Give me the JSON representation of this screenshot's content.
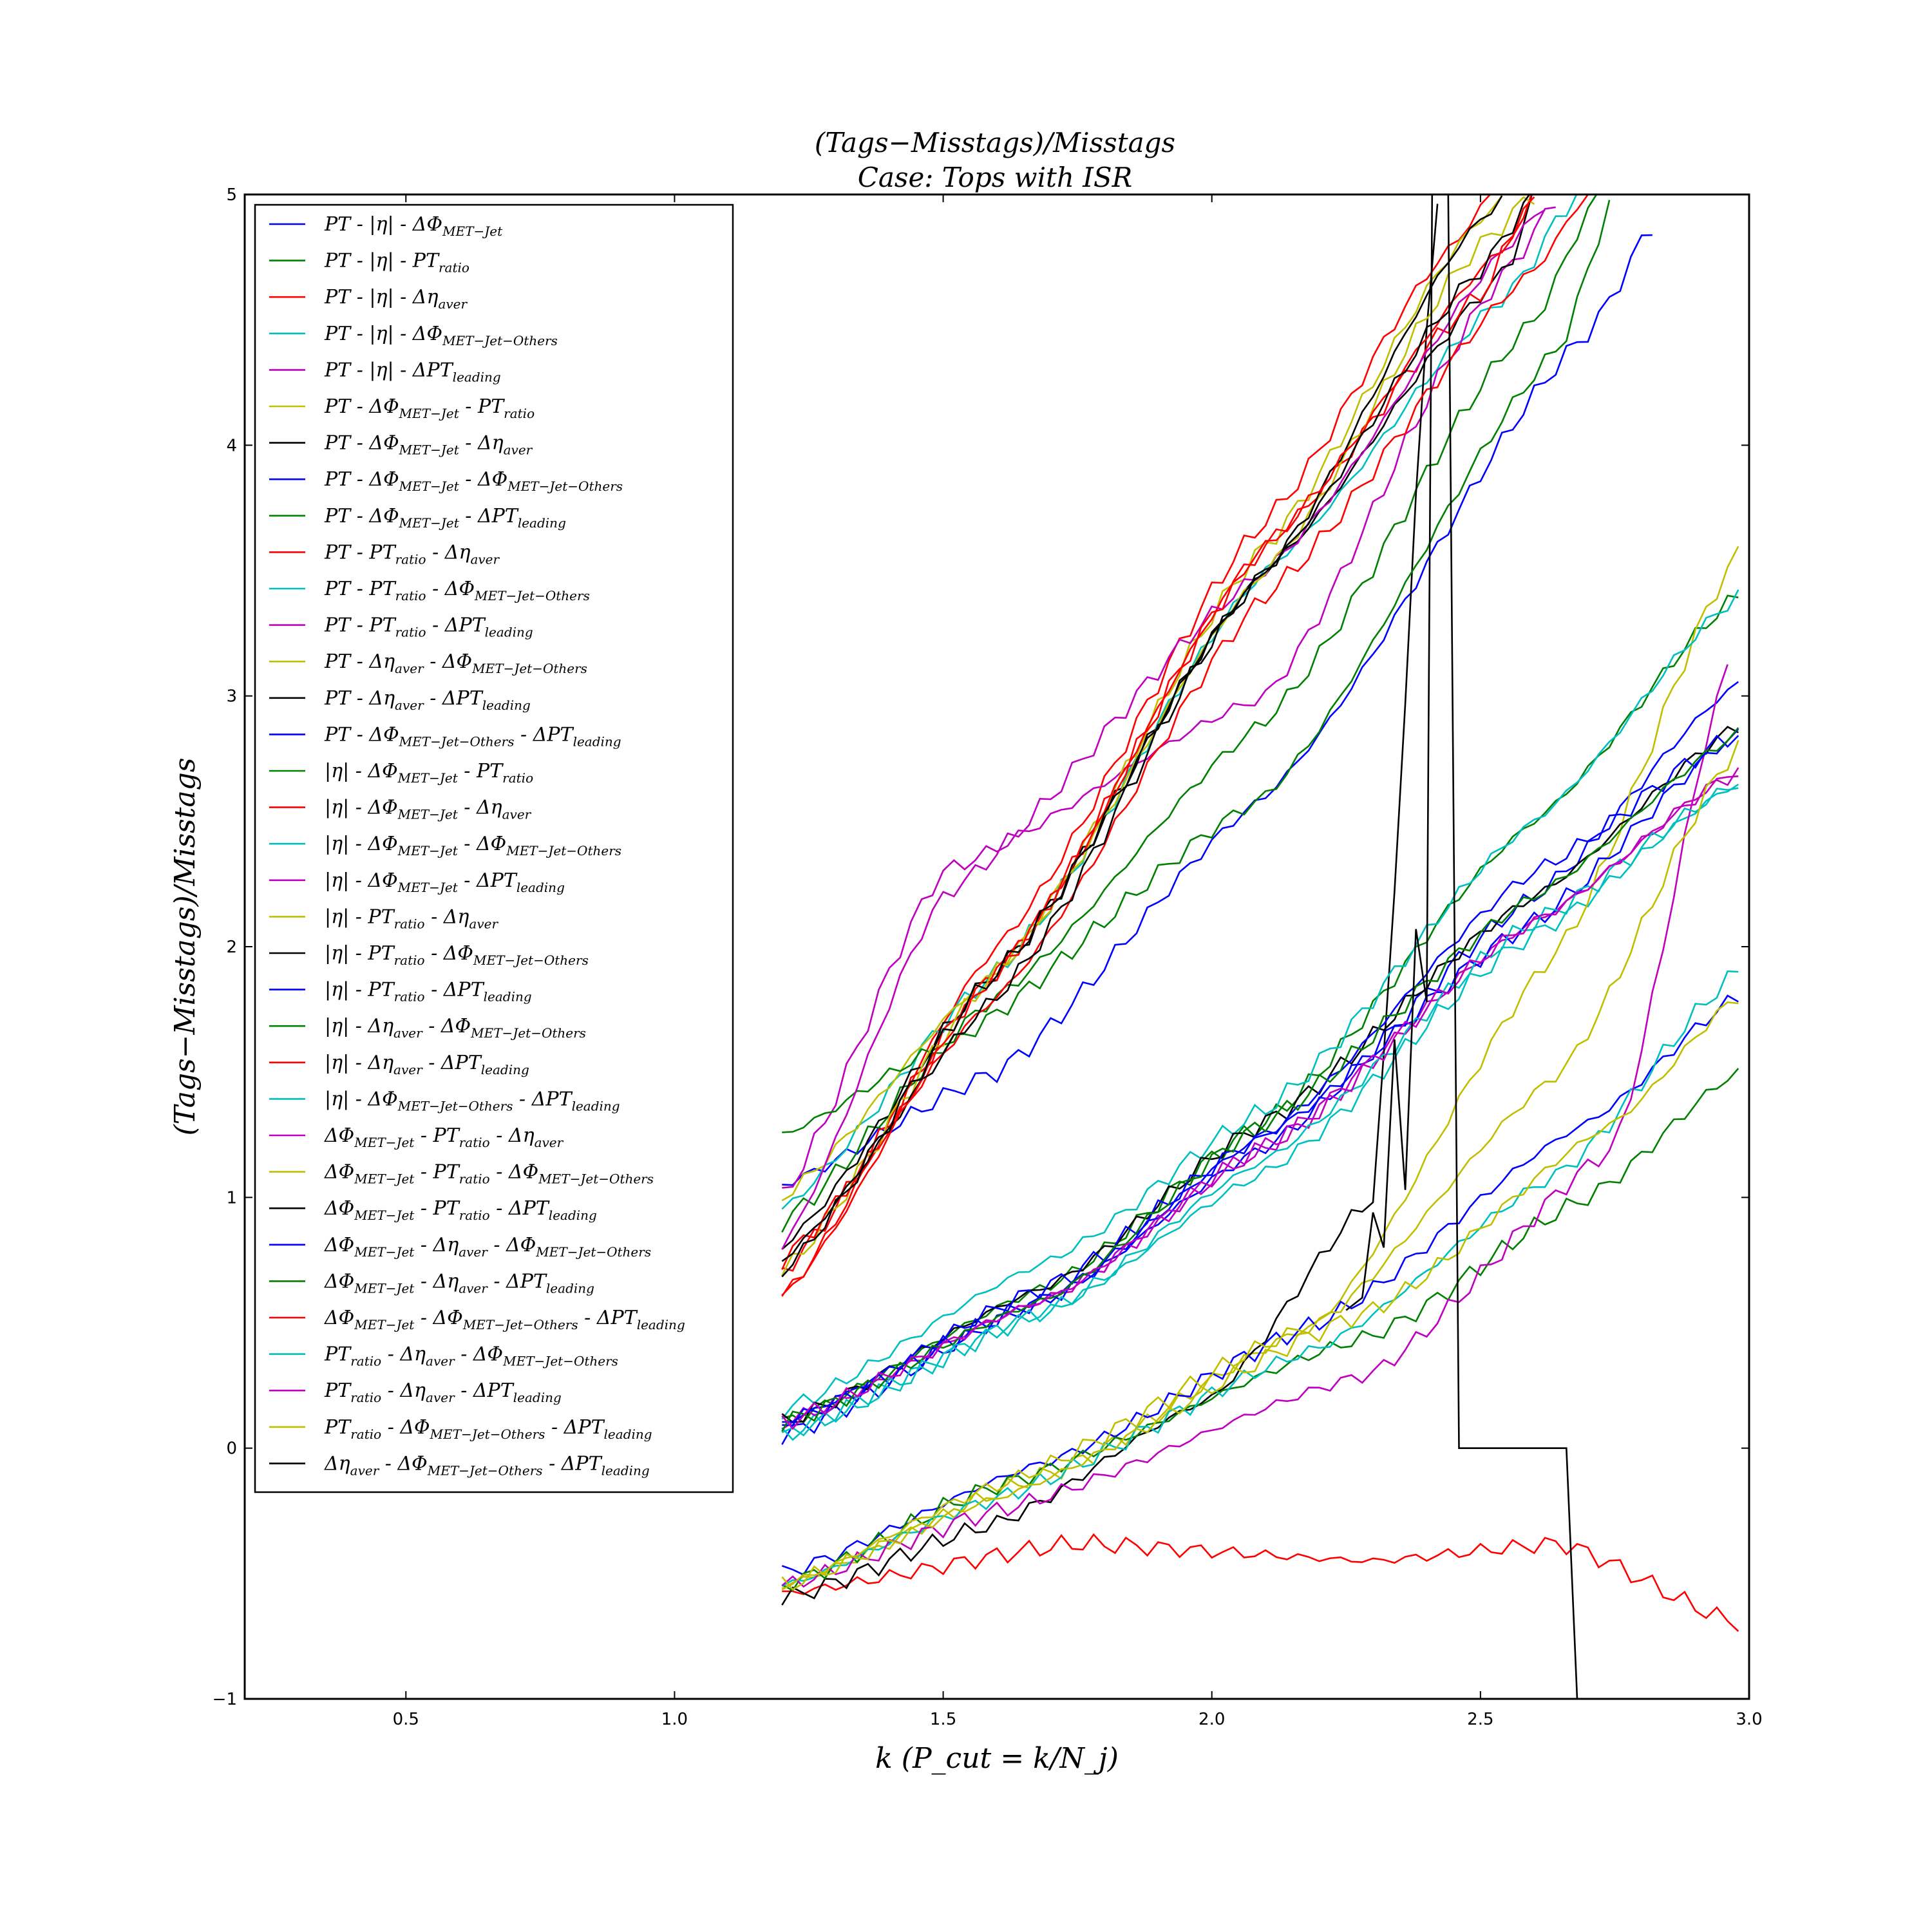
{
  "chart_data": {
    "type": "line",
    "title": "(Tags−Misstags)/Misstags",
    "subtitle": "Case: Tops with ISR",
    "xlabel": "k (P_cut = k/N_j)",
    "ylabel": "(Tags−Misstags)/Misstags",
    "xlim": [
      0.2,
      3.0
    ],
    "ylim": [
      -1,
      5
    ],
    "x_ticks": [
      "0.5",
      "1.0",
      "1.5",
      "2.0",
      "2.5",
      "3.0"
    ],
    "y_ticks": [
      "−1",
      "0",
      "1",
      "2",
      "3",
      "4",
      "5"
    ],
    "grid": false,
    "legend_position": "upper-left",
    "x_range": [
      1.2,
      2.98
    ],
    "series": [
      {
        "name": "PT - |η| - ΔΦ_MET−Jet",
        "color": "#0000ff",
        "y_at": [
          1.05,
          1.5,
          2.6,
          4.45,
          4.9
        ],
        "x_at": [
          1.2,
          1.6,
          2.1,
          2.7,
          2.83
        ]
      },
      {
        "name": "PT - |η| - PT_ratio",
        "color": "#008000",
        "y_at": [
          0.9,
          1.8,
          2.9,
          4.5,
          5.0
        ],
        "x_at": [
          1.2,
          1.6,
          2.1,
          2.6,
          2.72
        ]
      },
      {
        "name": "PT - |η| - Δη_aver",
        "color": "#ff0000",
        "y_at": [
          0.6,
          2.0,
          3.7,
          4.8,
          5.0
        ],
        "x_at": [
          1.2,
          1.6,
          2.1,
          2.45,
          2.52
        ]
      },
      {
        "name": "PT - |η| - ΔΦ_MET−Jet−Others",
        "color": "#00bfbf",
        "y_at": [
          0.95,
          1.9,
          3.5,
          4.6,
          5.0
        ],
        "x_at": [
          1.2,
          1.6,
          2.1,
          2.55,
          2.68
        ]
      },
      {
        "name": "PT - |η| - ΔPT_leading",
        "color": "#bf00bf",
        "y_at": [
          1.0,
          2.3,
          3.0,
          4.7,
          5.0
        ],
        "x_at": [
          1.2,
          1.5,
          2.1,
          2.55,
          2.65
        ]
      },
      {
        "name": "PT - ΔΦ_MET−Jet - PT_ratio",
        "color": "#bfbf00",
        "y_at": [
          1.0,
          1.9,
          3.6,
          4.9,
          5.0
        ],
        "x_at": [
          1.2,
          1.6,
          2.1,
          2.5,
          2.55
        ]
      },
      {
        "name": "PT - ΔΦ_MET−Jet - Δη_aver",
        "color": "#000000",
        "y_at": [
          0.8,
          1.9,
          3.5,
          4.7,
          5.0
        ],
        "x_at": [
          1.2,
          1.6,
          2.1,
          2.55,
          2.6
        ]
      },
      {
        "name": "PT - ΔΦ_MET−Jet - ΔΦ_MET−Jet−Others",
        "color": "#0000ff",
        "y_at": [
          0.05,
          0.6,
          1.2,
          2.2,
          3.05
        ],
        "x_at": [
          1.2,
          1.7,
          2.1,
          2.6,
          2.98
        ]
      },
      {
        "name": "PT - ΔΦ_MET−Jet - ΔPT_leading",
        "color": "#008000",
        "y_at": [
          0.1,
          0.65,
          1.3,
          2.5,
          3.4
        ],
        "x_at": [
          1.2,
          1.7,
          2.1,
          2.6,
          2.98
        ]
      },
      {
        "name": "PT - PT_ratio - Δη_aver",
        "color": "#ff0000",
        "y_at": [
          -0.58,
          -0.38,
          -0.45,
          -0.38,
          -0.7
        ],
        "x_at": [
          1.2,
          1.75,
          2.3,
          2.65,
          2.98
        ]
      },
      {
        "name": "PT - PT_ratio - ΔΦ_MET−Jet−Others",
        "color": "#00bfbf",
        "y_at": [
          0.05,
          0.55,
          1.1,
          2.05,
          2.65
        ],
        "x_at": [
          1.2,
          1.7,
          2.1,
          2.6,
          2.98
        ]
      },
      {
        "name": "PT - PT_ratio - ΔPT_leading",
        "color": "#bf00bf",
        "y_at": [
          0.1,
          0.6,
          1.2,
          2.1,
          2.7
        ],
        "x_at": [
          1.2,
          1.7,
          2.1,
          2.6,
          2.98
        ]
      },
      {
        "name": "PT - Δη_aver - ΔΦ_MET−Jet−Others",
        "color": "#bfbf00",
        "y_at": [
          -0.55,
          -0.1,
          0.5,
          2.0,
          3.57
        ],
        "x_at": [
          1.2,
          1.7,
          2.2,
          2.65,
          2.98
        ]
      },
      {
        "name": "PT - Δη_aver - ΔPT_leading",
        "color": "#000000",
        "y_at": [
          -0.6,
          -0.3,
          0.2,
          1.0,
          5.0
        ],
        "x_at": [
          1.2,
          1.6,
          2.0,
          2.3,
          2.42
        ]
      },
      {
        "name": "PT - ΔΦ_MET−Jet−Others - ΔPT_leading",
        "color": "#0000ff",
        "y_at": [
          -0.5,
          -0.05,
          0.5,
          1.3,
          1.8
        ],
        "x_at": [
          1.2,
          1.7,
          2.2,
          2.7,
          2.98
        ]
      },
      {
        "name": "|η| - ΔΦ_MET−Jet - PT_ratio",
        "color": "#008000",
        "y_at": [
          1.25,
          1.6,
          2.6,
          4.4,
          5.0
        ],
        "x_at": [
          1.2,
          1.5,
          2.1,
          2.65,
          2.75
        ]
      },
      {
        "name": "|η| - ΔΦ_MET−Jet - Δη_aver",
        "color": "#ff0000",
        "y_at": [
          0.7,
          1.9,
          3.6,
          4.6,
          5.0
        ],
        "x_at": [
          1.2,
          1.6,
          2.1,
          2.5,
          2.6
        ]
      },
      {
        "name": "|η| - ΔΦ_MET−Jet - ΔΦ_MET−Jet−Others",
        "color": "#00bfbf",
        "y_at": [
          0.15,
          0.75,
          1.35,
          2.5,
          3.4
        ],
        "x_at": [
          1.2,
          1.7,
          2.1,
          2.6,
          2.98
        ]
      },
      {
        "name": "|η| - ΔΦ_MET−Jet - ΔPT_leading",
        "color": "#bf00bf",
        "y_at": [
          0.8,
          2.2,
          3.5,
          4.9,
          5.0
        ],
        "x_at": [
          1.2,
          1.5,
          2.1,
          2.6,
          2.63
        ]
      },
      {
        "name": "|η| - PT_ratio - Δη_aver",
        "color": "#bfbf00",
        "y_at": [
          0.7,
          1.9,
          3.5,
          4.8,
          5.0
        ],
        "x_at": [
          1.2,
          1.6,
          2.1,
          2.5,
          2.6
        ]
      },
      {
        "name": "|η| - PT_ratio - ΔΦ_MET−Jet−Others",
        "color": "#000000",
        "y_at": [
          0.1,
          0.65,
          1.3,
          2.2,
          2.88
        ],
        "x_at": [
          1.2,
          1.7,
          2.1,
          2.6,
          2.98
        ]
      },
      {
        "name": "|η| - PT_ratio - ΔPT_leading",
        "color": "#0000ff",
        "y_at": [
          0.1,
          0.65,
          1.25,
          2.3,
          2.85
        ],
        "x_at": [
          1.2,
          1.7,
          2.1,
          2.6,
          2.98
        ]
      },
      {
        "name": "|η| - Δη_aver - ΔΦ_MET−Jet−Others",
        "color": "#008000",
        "y_at": [
          -0.55,
          -0.15,
          0.45,
          1.0,
          1.5
        ],
        "x_at": [
          1.2,
          1.6,
          2.3,
          2.7,
          2.98
        ]
      },
      {
        "name": "|η| - Δη_aver - ΔPT_leading",
        "color": "#ff0000",
        "y_at": [
          0.75,
          1.8,
          3.4,
          4.7,
          5.0
        ],
        "x_at": [
          1.2,
          1.6,
          2.1,
          2.6,
          2.7
        ]
      },
      {
        "name": "|η| - ΔΦ_MET−Jet−Others - ΔPT_leading",
        "color": "#00bfbf",
        "y_at": [
          -0.55,
          -0.2,
          0.4,
          1.1,
          1.9
        ],
        "x_at": [
          1.2,
          1.6,
          2.2,
          2.65,
          2.98
        ]
      },
      {
        "name": "ΔΦ_MET−Jet - PT_ratio - Δη_aver",
        "color": "#bf00bf",
        "y_at": [
          -0.55,
          -0.25,
          0.3,
          1.2,
          3.12
        ],
        "x_at": [
          1.2,
          1.6,
          2.3,
          2.75,
          2.96
        ]
      },
      {
        "name": "ΔΦ_MET−Jet - PT_ratio - ΔΦ_MET−Jet−Others",
        "color": "#bfbf00",
        "y_at": [
          -0.55,
          -0.2,
          0.55,
          1.3,
          1.8
        ],
        "x_at": [
          1.2,
          1.6,
          2.3,
          2.75,
          2.98
        ]
      },
      {
        "name": "ΔΦ_MET−Jet - PT_ratio - ΔPT_leading",
        "color": "#000000",
        "y_at": [
          0.75,
          1.8,
          3.5,
          4.9,
          5.0
        ],
        "x_at": [
          1.2,
          1.6,
          2.1,
          2.5,
          2.55
        ]
      },
      {
        "name": "ΔΦ_MET−Jet - Δη_aver - ΔΦ_MET−Jet−Others",
        "color": "#0000ff",
        "y_at": [
          0.1,
          0.6,
          1.25,
          2.1,
          2.85
        ],
        "x_at": [
          1.2,
          1.7,
          2.1,
          2.6,
          2.98
        ]
      },
      {
        "name": "ΔΦ_MET−Jet - Δη_aver - ΔPT_leading",
        "color": "#008000",
        "y_at": [
          0.1,
          0.6,
          1.3,
          2.2,
          2.85
        ],
        "x_at": [
          1.2,
          1.7,
          2.1,
          2.6,
          2.98
        ]
      },
      {
        "name": "ΔΦ_MET−Jet - ΔΦ_MET−Jet−Others - ΔPT_leading",
        "color": "#ff0000",
        "y_at": [
          0.6,
          1.9,
          3.6,
          4.8,
          5.0
        ],
        "x_at": [
          1.2,
          1.6,
          2.1,
          2.55,
          2.6
        ]
      },
      {
        "name": "PT_ratio - Δη_aver - ΔΦ_MET−Jet−Others",
        "color": "#00bfbf",
        "y_at": [
          0.05,
          0.55,
          1.15,
          2.1,
          2.65
        ],
        "x_at": [
          1.2,
          1.7,
          2.1,
          2.6,
          2.98
        ]
      },
      {
        "name": "PT_ratio - Δη_aver - ΔPT_leading",
        "color": "#bf00bf",
        "y_at": [
          0.1,
          0.6,
          1.2,
          2.1,
          2.7
        ],
        "x_at": [
          1.2,
          1.7,
          2.1,
          2.6,
          2.98
        ]
      },
      {
        "name": "PT_ratio - ΔΦ_MET−Jet−Others - ΔPT_leading",
        "color": "#bfbf00",
        "y_at": [
          -0.55,
          -0.15,
          0.5,
          1.5,
          2.8
        ],
        "x_at": [
          1.2,
          1.6,
          2.2,
          2.65,
          2.98
        ]
      },
      {
        "name": "Δη_aver - ΔΦ_MET−Jet−Others - ΔPT_leading",
        "color": "#000000",
        "y_at": [
          0.7,
          1.9,
          3.5,
          4.7,
          5.0
        ],
        "x_at": [
          1.2,
          1.6,
          2.1,
          2.5,
          2.6
        ]
      }
    ],
    "outlier_series": {
      "name": "PT - Δη_aver - ΔPT_leading",
      "color": "#000000",
      "x": [
        2.25,
        2.28,
        2.3,
        2.32,
        2.34,
        2.36,
        2.38,
        2.4,
        2.41,
        2.42,
        2.44,
        2.46,
        2.48,
        2.66,
        2.68,
        2.72
      ],
      "y": [
        0.55,
        0.6,
        0.94,
        0.8,
        1.63,
        1.03,
        2.07,
        1.78,
        5.0,
        5.0,
        5.0,
        0.0,
        0.0,
        0.0,
        -1.0,
        -1.0
      ]
    }
  },
  "legend": {
    "items": [
      {
        "main": "PT - |η| - ΔΦ",
        "sub": "MET−Jet",
        "color": "#0000ff"
      },
      {
        "main": "PT - |η| - PT",
        "sub": "ratio",
        "color": "#008000"
      },
      {
        "main": "PT - |η| - Δη",
        "sub": "aver",
        "color": "#ff0000"
      },
      {
        "main": "PT - |η| - ΔΦ",
        "sub": "MET−Jet−Others",
        "color": "#00bfbf"
      },
      {
        "main": "PT - |η| - ΔPT",
        "sub": "leading",
        "color": "#bf00bf"
      },
      {
        "main": "PT - ΔΦ",
        "sub": "MET−Jet",
        "tail": " - PT",
        "sub2": "ratio",
        "color": "#bfbf00"
      },
      {
        "main": "PT - ΔΦ",
        "sub": "MET−Jet",
        "tail": " - Δη",
        "sub2": "aver",
        "color": "#000000"
      },
      {
        "main": "PT - ΔΦ",
        "sub": "MET−Jet",
        "tail": " - ΔΦ",
        "sub2": "MET−Jet−Others",
        "color": "#0000ff"
      },
      {
        "main": "PT - ΔΦ",
        "sub": "MET−Jet",
        "tail": " - ΔPT",
        "sub2": "leading",
        "color": "#008000"
      },
      {
        "main": "PT - PT",
        "sub": "ratio",
        "tail": " - Δη",
        "sub2": "aver",
        "color": "#ff0000"
      },
      {
        "main": "PT - PT",
        "sub": "ratio",
        "tail": " - ΔΦ",
        "sub2": "MET−Jet−Others",
        "color": "#00bfbf"
      },
      {
        "main": "PT - PT",
        "sub": "ratio",
        "tail": " - ΔPT",
        "sub2": "leading",
        "color": "#bf00bf"
      },
      {
        "main": "PT - Δη",
        "sub": "aver",
        "tail": " - ΔΦ",
        "sub2": "MET−Jet−Others",
        "color": "#bfbf00"
      },
      {
        "main": "PT - Δη",
        "sub": "aver",
        "tail": " - ΔPT",
        "sub2": "leading",
        "color": "#000000"
      },
      {
        "main": "PT - ΔΦ",
        "sub": "MET−Jet−Others",
        "tail": " - ΔPT",
        "sub2": "leading",
        "color": "#0000ff"
      },
      {
        "main": "|η| - ΔΦ",
        "sub": "MET−Jet",
        "tail": " - PT",
        "sub2": "ratio",
        "color": "#008000"
      },
      {
        "main": "|η| - ΔΦ",
        "sub": "MET−Jet",
        "tail": " - Δη",
        "sub2": "aver",
        "color": "#ff0000"
      },
      {
        "main": "|η| - ΔΦ",
        "sub": "MET−Jet",
        "tail": " - ΔΦ",
        "sub2": "MET−Jet−Others",
        "color": "#00bfbf"
      },
      {
        "main": "|η| - ΔΦ",
        "sub": "MET−Jet",
        "tail": " - ΔPT",
        "sub2": "leading",
        "color": "#bf00bf"
      },
      {
        "main": "|η| - PT",
        "sub": "ratio",
        "tail": " - Δη",
        "sub2": "aver",
        "color": "#bfbf00"
      },
      {
        "main": "|η| - PT",
        "sub": "ratio",
        "tail": " - ΔΦ",
        "sub2": "MET−Jet−Others",
        "color": "#000000"
      },
      {
        "main": "|η| - PT",
        "sub": "ratio",
        "tail": " - ΔPT",
        "sub2": "leading",
        "color": "#0000ff"
      },
      {
        "main": "|η| - Δη",
        "sub": "aver",
        "tail": " - ΔΦ",
        "sub2": "MET−Jet−Others",
        "color": "#008000"
      },
      {
        "main": "|η| - Δη",
        "sub": "aver",
        "tail": " - ΔPT",
        "sub2": "leading",
        "color": "#ff0000"
      },
      {
        "main": "|η| - ΔΦ",
        "sub": "MET−Jet−Others",
        "tail": " - ΔPT",
        "sub2": "leading",
        "color": "#00bfbf"
      },
      {
        "main": "ΔΦ",
        "sub": "MET−Jet",
        "tail": " - PT",
        "sub2": "ratio",
        "tail2": " - Δη",
        "sub3": "aver",
        "color": "#bf00bf"
      },
      {
        "main": "ΔΦ",
        "sub": "MET−Jet",
        "tail": " - PT",
        "sub2": "ratio",
        "tail2": " - ΔΦ",
        "sub3": "MET−Jet−Others",
        "color": "#bfbf00"
      },
      {
        "main": "ΔΦ",
        "sub": "MET−Jet",
        "tail": " - PT",
        "sub2": "ratio",
        "tail2": " - ΔPT",
        "sub3": "leading",
        "color": "#000000"
      },
      {
        "main": "ΔΦ",
        "sub": "MET−Jet",
        "tail": " - Δη",
        "sub2": "aver",
        "tail2": " - ΔΦ",
        "sub3": "MET−Jet−Others",
        "color": "#0000ff"
      },
      {
        "main": "ΔΦ",
        "sub": "MET−Jet",
        "tail": " - Δη",
        "sub2": "aver",
        "tail2": " - ΔPT",
        "sub3": "leading",
        "color": "#008000"
      },
      {
        "main": "ΔΦ",
        "sub": "MET−Jet",
        "tail": " - ΔΦ",
        "sub2": "MET−Jet−Others",
        "tail2": " - ΔPT",
        "sub3": "leading",
        "color": "#ff0000"
      },
      {
        "main": "PT",
        "sub": "ratio",
        "tail": " - Δη",
        "sub2": "aver",
        "tail2": " - ΔΦ",
        "sub3": "MET−Jet−Others",
        "color": "#00bfbf"
      },
      {
        "main": "PT",
        "sub": "ratio",
        "tail": " - Δη",
        "sub2": "aver",
        "tail2": " - ΔPT",
        "sub3": "leading",
        "color": "#bf00bf"
      },
      {
        "main": "PT",
        "sub": "ratio",
        "tail": " - ΔΦ",
        "sub2": "MET−Jet−Others",
        "tail2": " - ΔPT",
        "sub3": "leading",
        "color": "#bfbf00"
      },
      {
        "main": "Δη",
        "sub": "aver",
        "tail": " - ΔΦ",
        "sub2": "MET−Jet−Others",
        "tail2": " - ΔPT",
        "sub3": "leading",
        "color": "#000000"
      }
    ]
  }
}
